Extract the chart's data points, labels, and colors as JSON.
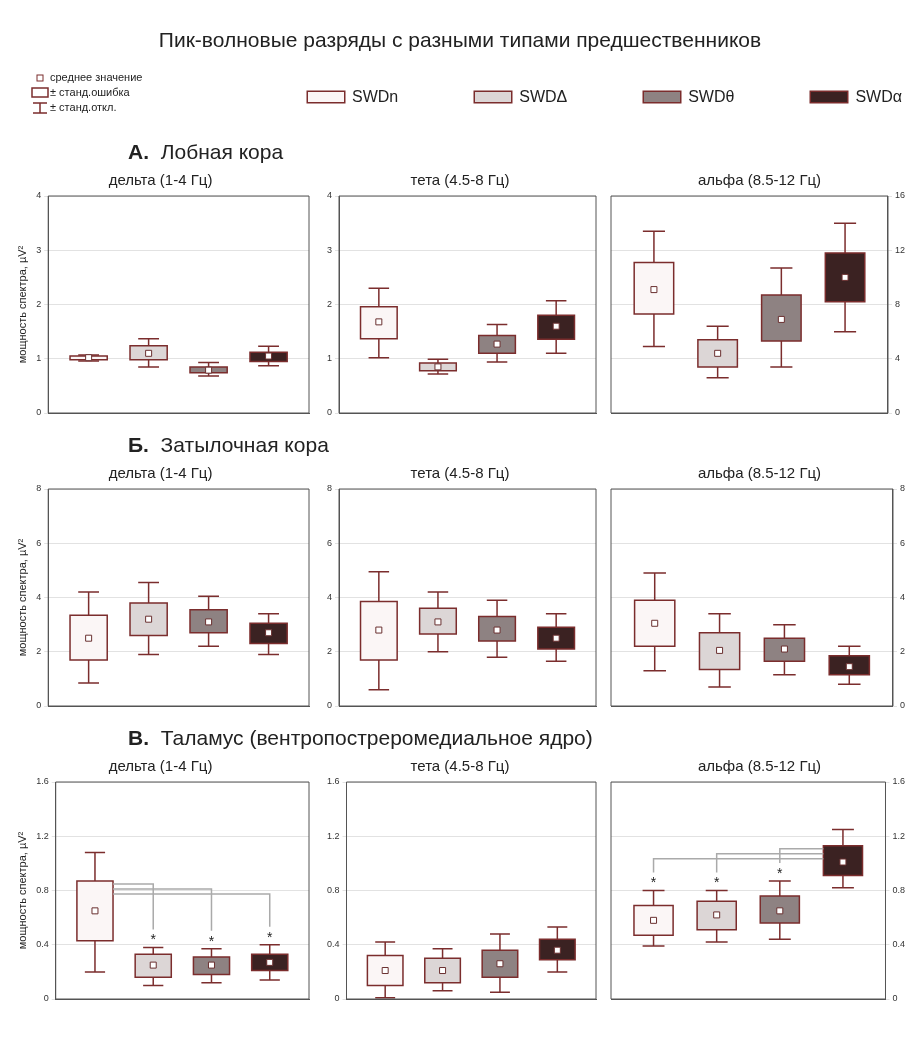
{
  "chart_data": [
    {
      "type": "box",
      "title": "дельта (1-4 Гц)",
      "subtitle": "А. Лобная кора",
      "ylabel": "мощность спектра, µV²",
      "legend": "top",
      "annotations": [
        "Пик-волновые разряды с разными типами предшественников",
        "среднее значение",
        "± станд.ошибка",
        "± станд.откл."
      ],
      "categories": [
        null
      ],
      "ylim": [
        0,
        4
      ],
      "yticks": [
        0,
        1,
        2,
        3,
        4
      ],
      "grid": "y",
      "series": [
        {
          "name": "SWDn",
          "color": "#fbf6f6",
          "boxes": [
            {
              "low": 0.96,
              "q1": 0.98,
              "median": 1.02,
              "q3": 1.05,
              "high": 1.07
            }
          ]
        },
        {
          "name": "SWDΔ",
          "color": "#dcd6d6",
          "boxes": [
            {
              "low": 0.85,
              "q1": 0.98,
              "median": 1.1,
              "q3": 1.24,
              "high": 1.37
            }
          ]
        },
        {
          "name": "SWDθ",
          "color": "#8e8282",
          "boxes": [
            {
              "low": 0.68,
              "q1": 0.74,
              "median": 0.79,
              "q3": 0.85,
              "high": 0.93
            }
          ]
        },
        {
          "name": "SWDα",
          "color": "#3b2222",
          "boxes": [
            {
              "low": 0.87,
              "q1": 0.95,
              "median": 1.05,
              "q3": 1.12,
              "high": 1.23
            }
          ]
        }
      ]
    },
    {
      "type": "box",
      "title": "тета (4.5-8 Гц)",
      "categories": [
        null
      ],
      "ylim": [
        0,
        4
      ],
      "yticks": [
        0,
        1,
        2,
        3,
        4
      ],
      "grid": "y",
      "series": [
        {
          "color": "#fbf6f6",
          "boxes": [
            {
              "low": 1.02,
              "q1": 1.37,
              "median": 1.68,
              "q3": 1.96,
              "high": 2.3
            }
          ]
        },
        {
          "color": "#dcd6d6",
          "boxes": [
            {
              "low": 0.72,
              "q1": 0.78,
              "median": 0.85,
              "q3": 0.92,
              "high": 0.99
            }
          ]
        },
        {
          "color": "#8e8282",
          "boxes": [
            {
              "low": 0.94,
              "q1": 1.1,
              "median": 1.27,
              "q3": 1.43,
              "high": 1.63
            }
          ]
        },
        {
          "color": "#3b2222",
          "boxes": [
            {
              "low": 1.1,
              "q1": 1.36,
              "median": 1.6,
              "q3": 1.8,
              "high": 2.07
            }
          ]
        }
      ]
    },
    {
      "type": "box",
      "title": "альфа (8.5-12 Гц)",
      "categories": [
        null
      ],
      "y2lim": [
        0,
        16
      ],
      "y2ticks": [
        0,
        4,
        8,
        12,
        16
      ],
      "grid": "y",
      "series": [
        {
          "color": "#fbf6f6",
          "axis": "y2",
          "boxes": [
            {
              "low": 4.9,
              "q1": 7.3,
              "median": 9.1,
              "q3": 11.1,
              "high": 13.4
            }
          ]
        },
        {
          "color": "#dcd6d6",
          "axis": "y2",
          "boxes": [
            {
              "low": 2.6,
              "q1": 3.4,
              "median": 4.4,
              "q3": 5.4,
              "high": 6.4
            }
          ]
        },
        {
          "color": "#8e8282",
          "axis": "y2",
          "boxes": [
            {
              "low": 3.4,
              "q1": 5.3,
              "median": 6.9,
              "q3": 8.7,
              "high": 10.7
            }
          ]
        },
        {
          "color": "#3b2222",
          "axis": "y2",
          "boxes": [
            {
              "low": 6,
              "q1": 8.2,
              "median": 10,
              "q3": 11.8,
              "high": 14
            }
          ]
        }
      ]
    },
    {
      "type": "box",
      "title": "дельта (1-4 Гц)",
      "subtitle": "Б. Затылочная кора",
      "ylabel": "мощность спектра, µV²",
      "categories": [
        null
      ],
      "ylim": [
        0,
        8
      ],
      "yticks": [
        0,
        2,
        4,
        6,
        8
      ],
      "grid": "y",
      "series": [
        {
          "color": "#fbf6f6",
          "boxes": [
            {
              "low": 0.85,
              "q1": 1.7,
              "median": 2.5,
              "q3": 3.35,
              "high": 4.2
            }
          ]
        },
        {
          "color": "#dcd6d6",
          "boxes": [
            {
              "low": 1.9,
              "q1": 2.6,
              "median": 3.2,
              "q3": 3.8,
              "high": 4.55
            }
          ]
        },
        {
          "color": "#8e8282",
          "boxes": [
            {
              "low": 2.2,
              "q1": 2.7,
              "median": 3.1,
              "q3": 3.55,
              "high": 4.05
            }
          ]
        },
        {
          "color": "#3b2222",
          "boxes": [
            {
              "low": 1.9,
              "q1": 2.3,
              "median": 2.7,
              "q3": 3.05,
              "high": 3.4
            }
          ]
        }
      ]
    },
    {
      "type": "box",
      "title": "тета (4.5-8 Гц)",
      "categories": [
        null
      ],
      "ylim": [
        0,
        8
      ],
      "yticks": [
        0,
        2,
        4,
        6,
        8
      ],
      "grid": "y",
      "series": [
        {
          "color": "#fbf6f6",
          "boxes": [
            {
              "low": 0.6,
              "q1": 1.7,
              "median": 2.8,
              "q3": 3.85,
              "high": 4.95
            }
          ]
        },
        {
          "color": "#dcd6d6",
          "boxes": [
            {
              "low": 2,
              "q1": 2.65,
              "median": 3.1,
              "q3": 3.6,
              "high": 4.2
            }
          ]
        },
        {
          "color": "#8e8282",
          "boxes": [
            {
              "low": 1.8,
              "q1": 2.4,
              "median": 2.8,
              "q3": 3.3,
              "high": 3.9
            }
          ]
        },
        {
          "color": "#3b2222",
          "boxes": [
            {
              "low": 1.65,
              "q1": 2.1,
              "median": 2.5,
              "q3": 2.9,
              "high": 3.4
            }
          ]
        }
      ]
    },
    {
      "type": "box",
      "title": "альфа (8.5-12 Гц)",
      "categories": [
        null
      ],
      "y2lim": [
        0,
        8
      ],
      "y2ticks": [
        0,
        2,
        4,
        6,
        8
      ],
      "grid": "y",
      "series": [
        {
          "color": "#fbf6f6",
          "axis": "y2",
          "boxes": [
            {
              "low": 1.3,
              "q1": 2.2,
              "median": 3.05,
              "q3": 3.9,
              "high": 4.9
            }
          ]
        },
        {
          "color": "#dcd6d6",
          "axis": "y2",
          "boxes": [
            {
              "low": 0.7,
              "q1": 1.35,
              "median": 2.05,
              "q3": 2.7,
              "high": 3.4
            }
          ]
        },
        {
          "color": "#8e8282",
          "axis": "y2",
          "boxes": [
            {
              "low": 1.15,
              "q1": 1.65,
              "median": 2.1,
              "q3": 2.5,
              "high": 3
            }
          ]
        },
        {
          "color": "#3b2222",
          "axis": "y2",
          "boxes": [
            {
              "low": 0.8,
              "q1": 1.15,
              "median": 1.45,
              "q3": 1.85,
              "high": 2.2
            }
          ]
        }
      ]
    },
    {
      "type": "box",
      "title": "дельта (1-4 Гц)",
      "subtitle": "В. Таламус (вентропостреромедиальное ядро)",
      "ylabel": "мощность спектра, µV²",
      "categories": [
        null
      ],
      "ylim": [
        0,
        1.6
      ],
      "yticks": [
        0,
        0.4,
        0.8,
        1.2,
        1.6
      ],
      "grid": "y",
      "series": [
        {
          "color": "#fbf6f6",
          "boxes": [
            {
              "low": 0.2,
              "q1": 0.43,
              "median": 0.65,
              "q3": 0.87,
              "high": 1.08
            }
          ]
        },
        {
          "color": "#dcd6d6",
          "value_labels": [
            "*"
          ],
          "boxes": [
            {
              "low": 0.1,
              "q1": 0.16,
              "median": 0.25,
              "q3": 0.33,
              "high": 0.38
            }
          ]
        },
        {
          "color": "#8e8282",
          "value_labels": [
            "*"
          ],
          "boxes": [
            {
              "low": 0.12,
              "q1": 0.18,
              "median": 0.25,
              "q3": 0.31,
              "high": 0.37
            }
          ]
        },
        {
          "color": "#3b2222",
          "value_labels": [
            "*"
          ],
          "boxes": [
            {
              "low": 0.14,
              "q1": 0.21,
              "median": 0.27,
              "q3": 0.33,
              "high": 0.4
            }
          ]
        }
      ]
    },
    {
      "type": "box",
      "title": "тета (4.5-8 Гц)",
      "categories": [
        null
      ],
      "ylim": [
        0,
        1.6
      ],
      "yticks": [
        0,
        0.4,
        0.8,
        1.2,
        1.6
      ],
      "grid": "y",
      "series": [
        {
          "color": "#fbf6f6",
          "boxes": [
            {
              "low": 0.01,
              "q1": 0.1,
              "median": 0.21,
              "q3": 0.32,
              "high": 0.42
            }
          ]
        },
        {
          "color": "#dcd6d6",
          "boxes": [
            {
              "low": 0.06,
              "q1": 0.12,
              "median": 0.21,
              "q3": 0.3,
              "high": 0.37
            }
          ]
        },
        {
          "color": "#8e8282",
          "boxes": [
            {
              "low": 0.05,
              "q1": 0.16,
              "median": 0.26,
              "q3": 0.36,
              "high": 0.48
            }
          ]
        },
        {
          "color": "#3b2222",
          "boxes": [
            {
              "low": 0.2,
              "q1": 0.29,
              "median": 0.36,
              "q3": 0.44,
              "high": 0.53
            }
          ]
        }
      ]
    },
    {
      "type": "box",
      "title": "альфа (8.5-12 Гц)",
      "categories": [
        null
      ],
      "y2lim": [
        0,
        1.6
      ],
      "y2ticks": [
        0,
        0.4,
        0.8,
        1.2,
        1.6
      ],
      "grid": "y",
      "series": [
        {
          "color": "#fbf6f6",
          "axis": "y2",
          "value_labels": [
            "*"
          ],
          "boxes": [
            {
              "low": 0.39,
              "q1": 0.47,
              "median": 0.58,
              "q3": 0.69,
              "high": 0.8
            }
          ]
        },
        {
          "color": "#dcd6d6",
          "axis": "y2",
          "value_labels": [
            "*"
          ],
          "boxes": [
            {
              "low": 0.42,
              "q1": 0.51,
              "median": 0.62,
              "q3": 0.72,
              "high": 0.8
            }
          ]
        },
        {
          "color": "#8e8282",
          "axis": "y2",
          "value_labels": [
            "*"
          ],
          "boxes": [
            {
              "low": 0.44,
              "q1": 0.56,
              "median": 0.65,
              "q3": 0.76,
              "high": 0.87
            }
          ]
        },
        {
          "color": "#3b2222",
          "axis": "y2",
          "boxes": [
            {
              "low": 0.82,
              "q1": 0.91,
              "median": 1.01,
              "q3": 1.13,
              "high": 1.25
            }
          ]
        }
      ]
    }
  ]
}
